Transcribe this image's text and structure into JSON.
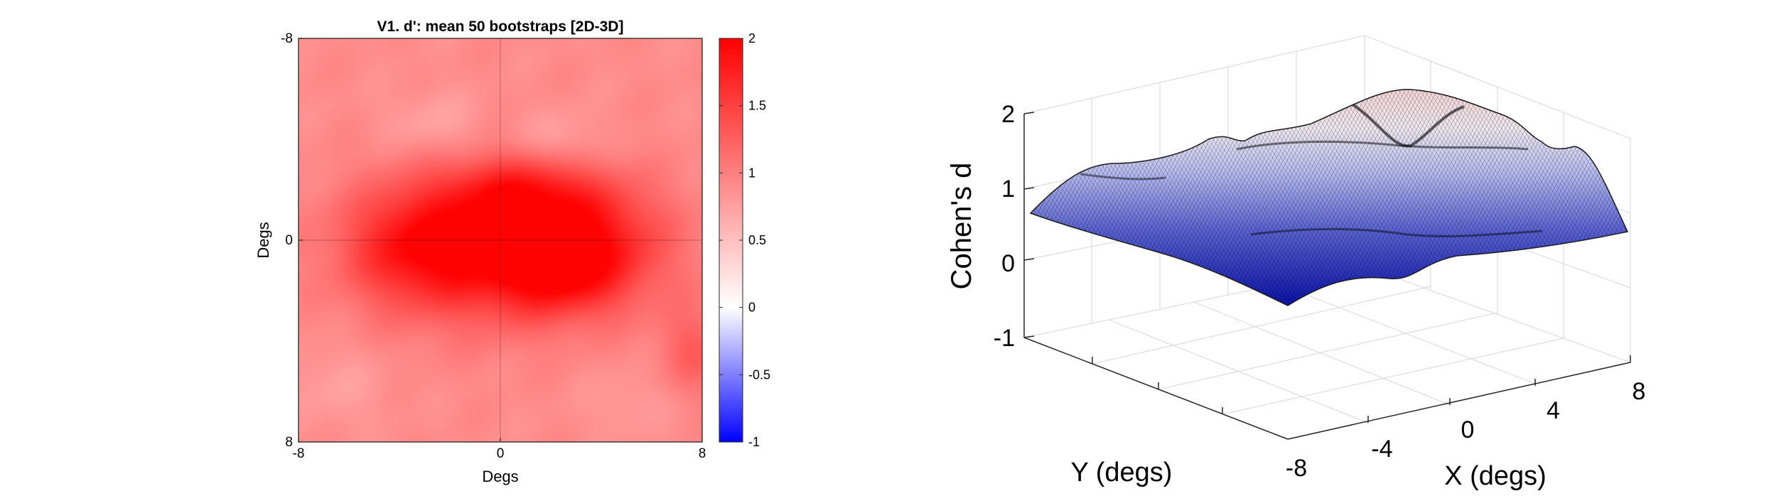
{
  "chart_data": [
    {
      "type": "heatmap",
      "title": "V1. d': mean 50 bootstraps [2D-3D]",
      "xlabel": "Degs",
      "ylabel": "Degs",
      "xlim": [
        -8,
        8
      ],
      "ylim": [
        -8,
        8
      ],
      "x_ticks": [
        "-8",
        "0",
        "8"
      ],
      "y_ticks": [
        "-8",
        "0",
        "8"
      ],
      "y_direction": "reversed",
      "crosshair_at": [
        0,
        0
      ],
      "colorbar": {
        "range": [
          -1,
          2
        ],
        "ticks": [
          "2",
          "1.5",
          "1",
          "0.5",
          "0",
          "-0.5",
          "-1"
        ],
        "colors": {
          "low": "#0000ff",
          "mid": "#ffffff",
          "high": "#ff0000"
        },
        "white_at": 0.25
      },
      "field": {
        "description": "approximate d' field: high (~1.8-2.0) central band, moderate (~0.8-1.1) periphery",
        "background": 0.9,
        "blobs": [
          {
            "x": 0.0,
            "y": 0.3,
            "sx": 3.6,
            "sy": 2.0,
            "amp": 1.0
          },
          {
            "x": -3.5,
            "y": 0.2,
            "sx": 1.8,
            "sy": 1.6,
            "amp": 0.5
          },
          {
            "x": 3.5,
            "y": 0.0,
            "sx": 2.0,
            "sy": 1.6,
            "amp": 0.55
          },
          {
            "x": 0.6,
            "y": -2.0,
            "sx": 2.0,
            "sy": 0.9,
            "amp": 0.5
          },
          {
            "x": 2.2,
            "y": 1.6,
            "sx": 1.8,
            "sy": 1.0,
            "amp": 0.35
          },
          {
            "x": 7.6,
            "y": 4.4,
            "sx": 0.9,
            "sy": 1.3,
            "amp": 0.35
          },
          {
            "x": -2.6,
            "y": -4.6,
            "sx": 1.4,
            "sy": 0.9,
            "amp": -0.2
          },
          {
            "x": 2.4,
            "y": -4.0,
            "sx": 1.2,
            "sy": 0.8,
            "amp": -0.22
          },
          {
            "x": -6.5,
            "y": 5.8,
            "sx": 1.4,
            "sy": 1.2,
            "amp": -0.15
          },
          {
            "x": 5.2,
            "y": 6.4,
            "sx": 1.3,
            "sy": 1.0,
            "amp": -0.12
          }
        ]
      }
    },
    {
      "type": "surface",
      "zlabel": "Cohen's d",
      "xlabel": "X (degs)",
      "ylabel": "Y (degs)",
      "zlim": [
        -1,
        2
      ],
      "z_ticks": [
        "2",
        "1",
        "0",
        "-1"
      ],
      "x_ticks": [
        "-8",
        "-4",
        "0",
        "4",
        "8"
      ],
      "grid": true,
      "colormap": {
        "low": "#0000bb",
        "mid": "#ffffff",
        "high": "#ff0000"
      },
      "edge_color": "#000000"
    }
  ]
}
